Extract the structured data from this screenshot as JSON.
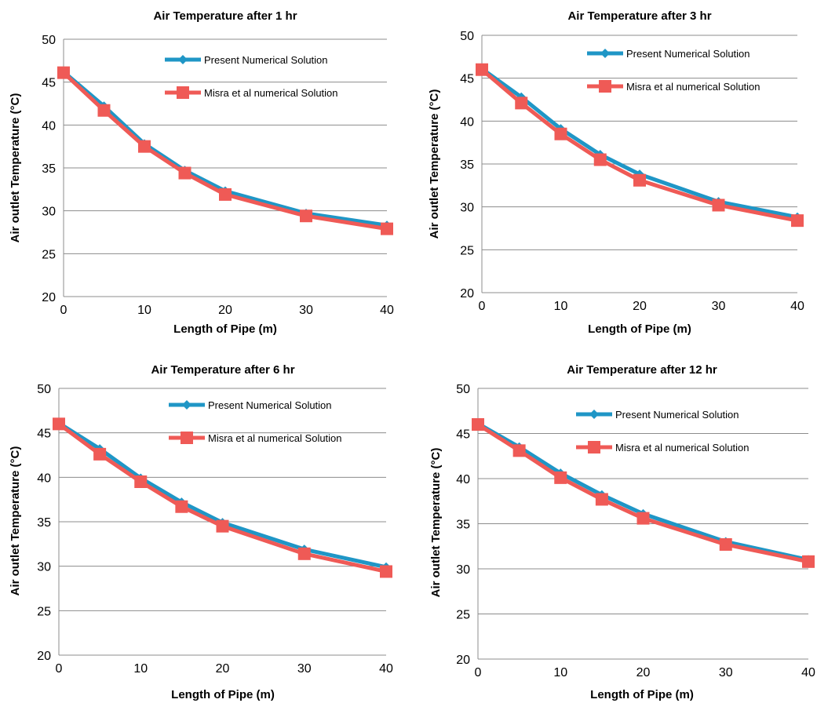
{
  "colors": {
    "present": "#1f96c6",
    "misra": "#ef5a56",
    "grid": "#8c8c8c",
    "axis": "#8c8c8c"
  },
  "chart_data": [
    {
      "type": "line",
      "title": "Air Temperature after 1 hr",
      "xlabel": "Length of Pipe (m)",
      "ylabel": "Air outlet  Temperature (°C)",
      "x": [
        0,
        5,
        10,
        15,
        20,
        30,
        40
      ],
      "xticks": [
        0,
        10,
        20,
        30,
        40
      ],
      "yticks": [
        20,
        25,
        30,
        35,
        40,
        45,
        50
      ],
      "xlim": [
        0,
        40
      ],
      "ylim": [
        20,
        50
      ],
      "grid": "horizontal",
      "legend_position": "top-right",
      "series": [
        {
          "name": "Present Numerical Solution",
          "marker": "diamond",
          "values": [
            46.2,
            42.2,
            37.8,
            34.7,
            32.3,
            29.7,
            28.3
          ]
        },
        {
          "name": "Misra et al numerical Solution",
          "marker": "square",
          "values": [
            46.1,
            41.7,
            37.5,
            34.4,
            31.9,
            29.4,
            27.9
          ]
        }
      ]
    },
    {
      "type": "line",
      "title": "Air Temperature after 3 hr",
      "xlabel": "Length of Pipe (m)",
      "ylabel": "Air outlet Temperature (°C)",
      "x": [
        0,
        5,
        10,
        15,
        20,
        30,
        40
      ],
      "xticks": [
        0,
        10,
        20,
        30,
        40
      ],
      "yticks": [
        20,
        25,
        30,
        35,
        40,
        45,
        50
      ],
      "xlim": [
        0,
        40
      ],
      "ylim": [
        20,
        50
      ],
      "grid": "horizontal",
      "legend_position": "top-right",
      "series": [
        {
          "name": "Present Numerical Solution",
          "marker": "diamond",
          "values": [
            46.1,
            42.8,
            39.1,
            36.1,
            33.8,
            30.6,
            28.8
          ]
        },
        {
          "name": "Misra et al numerical Solution",
          "marker": "square",
          "values": [
            46.0,
            42.1,
            38.5,
            35.5,
            33.1,
            30.2,
            28.4
          ]
        }
      ]
    },
    {
      "type": "line",
      "title": "Air Temperature after 6 hr",
      "xlabel": "Length of Pipe (m)",
      "ylabel": "Air outlet  Temperature (°C)",
      "x": [
        0,
        5,
        10,
        15,
        20,
        30,
        40
      ],
      "xticks": [
        0,
        10,
        20,
        30,
        40
      ],
      "yticks": [
        20,
        25,
        30,
        35,
        40,
        45,
        50
      ],
      "xlim": [
        0,
        40
      ],
      "ylim": [
        20,
        50
      ],
      "grid": "horizontal",
      "legend_position": "top-right",
      "series": [
        {
          "name": "Present Numerical Solution",
          "marker": "diamond",
          "values": [
            46.1,
            43.2,
            39.9,
            37.2,
            34.9,
            31.9,
            29.9
          ]
        },
        {
          "name": "Misra et al numerical Solution",
          "marker": "square",
          "values": [
            46.0,
            42.6,
            39.5,
            36.7,
            34.5,
            31.4,
            29.4
          ]
        }
      ]
    },
    {
      "type": "line",
      "title": "Air Temperature after 12 hr",
      "xlabel": "Length of Pipe (m)",
      "ylabel": "Air outlet Temperature (°C)",
      "x": [
        0,
        5,
        10,
        15,
        20,
        30,
        40
      ],
      "xticks": [
        0,
        10,
        20,
        30,
        40
      ],
      "yticks": [
        20,
        25,
        30,
        35,
        40,
        45,
        50
      ],
      "xlim": [
        0,
        40
      ],
      "ylim": [
        20,
        50
      ],
      "grid": "horizontal",
      "legend_position": "top-right",
      "series": [
        {
          "name": "Present Numerical Solution",
          "marker": "diamond",
          "values": [
            46.1,
            43.5,
            40.6,
            38.2,
            36.1,
            33.0,
            31.0
          ]
        },
        {
          "name": "Misra et al numerical Solution",
          "marker": "square",
          "values": [
            46.0,
            43.1,
            40.1,
            37.7,
            35.6,
            32.7,
            30.8
          ]
        }
      ]
    }
  ]
}
